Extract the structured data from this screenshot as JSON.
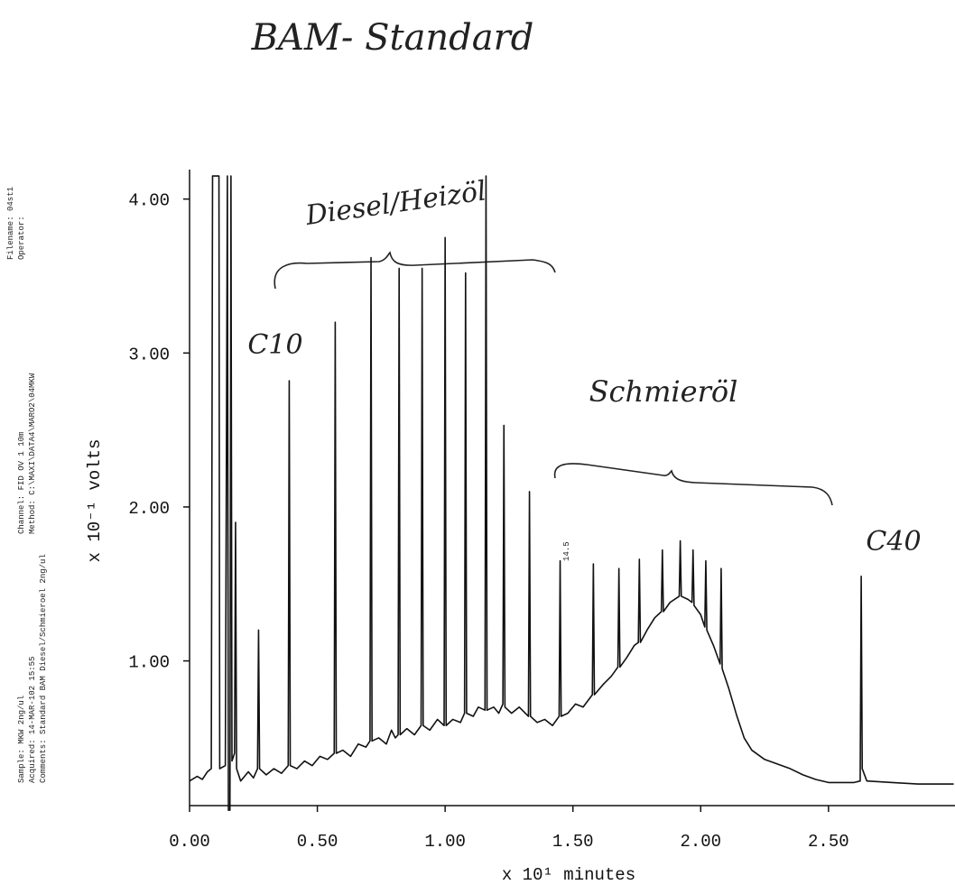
{
  "chart_data": {
    "type": "line",
    "title": "BAM- Standard",
    "annotations": [
      "Diesel/Heizöl",
      "C10",
      "Schmieröl",
      "C40",
      "14.5"
    ],
    "x_label": "x 10¹ minutes",
    "y_label": "x 10⁻¹ volts",
    "xlim": [
      0,
      2.995
    ],
    "ylim": [
      0.06,
      4.25
    ],
    "xticks": [
      {
        "value": 0,
        "label": "0.00"
      },
      {
        "value": 0.5,
        "label": "0.50"
      },
      {
        "value": 1,
        "label": "1.00"
      },
      {
        "value": 1.5,
        "label": "1.50"
      },
      {
        "value": 2,
        "label": "2.00"
      },
      {
        "value": 2.5,
        "label": "2.50"
      }
    ],
    "yticks": [
      {
        "value": 1,
        "label": "1.00"
      },
      {
        "value": 2,
        "label": "2.00"
      },
      {
        "value": 3,
        "label": "3.00"
      },
      {
        "value": 4,
        "label": "4.00"
      }
    ],
    "x": [
      0.0,
      0.03,
      0.05,
      0.07,
      0.085,
      0.09,
      0.115,
      0.118,
      0.14,
      0.148,
      0.152,
      0.158,
      0.162,
      0.166,
      0.176,
      0.18,
      0.184,
      0.2,
      0.23,
      0.25,
      0.266,
      0.27,
      0.274,
      0.3,
      0.33,
      0.36,
      0.386,
      0.39,
      0.394,
      0.42,
      0.45,
      0.48,
      0.51,
      0.54,
      0.566,
      0.57,
      0.574,
      0.6,
      0.63,
      0.66,
      0.69,
      0.706,
      0.71,
      0.714,
      0.74,
      0.77,
      0.79,
      0.805,
      0.816,
      0.82,
      0.824,
      0.85,
      0.88,
      0.906,
      0.91,
      0.914,
      0.94,
      0.97,
      0.996,
      1.0,
      1.004,
      1.03,
      1.06,
      1.076,
      1.08,
      1.084,
      1.11,
      1.13,
      1.156,
      1.16,
      1.164,
      1.19,
      1.21,
      1.226,
      1.23,
      1.234,
      1.26,
      1.29,
      1.326,
      1.33,
      1.334,
      1.36,
      1.39,
      1.42,
      1.446,
      1.45,
      1.454,
      1.48,
      1.51,
      1.54,
      1.576,
      1.58,
      1.584,
      1.62,
      1.65,
      1.676,
      1.68,
      1.684,
      1.71,
      1.74,
      1.756,
      1.76,
      1.764,
      1.79,
      1.82,
      1.846,
      1.85,
      1.854,
      1.88,
      1.916,
      1.92,
      1.924,
      1.95,
      1.966,
      1.97,
      1.974,
      2.0,
      2.016,
      2.02,
      2.024,
      2.05,
      2.076,
      2.08,
      2.084,
      2.11,
      2.14,
      2.17,
      2.2,
      2.25,
      2.3,
      2.35,
      2.4,
      2.45,
      2.5,
      2.55,
      2.6,
      2.624,
      2.628,
      2.632,
      2.65,
      2.75,
      2.85,
      2.99
    ],
    "series": [
      {
        "color": "#111111",
        "values": [
          0.22,
          0.25,
          0.23,
          0.28,
          0.3,
          4.15,
          4.15,
          0.3,
          0.32,
          4.15,
          0.03,
          0.03,
          4.15,
          0.35,
          0.4,
          1.9,
          0.3,
          0.22,
          0.28,
          0.24,
          0.3,
          1.2,
          0.3,
          0.26,
          0.3,
          0.27,
          0.32,
          2.82,
          0.32,
          0.3,
          0.35,
          0.32,
          0.38,
          0.36,
          0.4,
          3.2,
          0.4,
          0.42,
          0.38,
          0.46,
          0.44,
          0.48,
          3.62,
          0.48,
          0.5,
          0.46,
          0.55,
          0.5,
          0.52,
          3.55,
          0.52,
          0.56,
          0.52,
          0.58,
          3.55,
          0.58,
          0.55,
          0.62,
          0.58,
          3.75,
          0.58,
          0.62,
          0.6,
          0.66,
          3.52,
          0.66,
          0.64,
          0.7,
          0.68,
          4.15,
          0.68,
          0.7,
          0.66,
          0.72,
          2.53,
          0.7,
          0.66,
          0.7,
          0.64,
          2.1,
          0.64,
          0.6,
          0.62,
          0.58,
          0.64,
          1.65,
          0.64,
          0.66,
          0.72,
          0.7,
          0.78,
          1.63,
          0.78,
          0.85,
          0.9,
          0.96,
          1.6,
          0.96,
          1.02,
          1.1,
          1.12,
          1.66,
          1.12,
          1.2,
          1.28,
          1.32,
          1.72,
          1.32,
          1.38,
          1.42,
          1.78,
          1.42,
          1.4,
          1.38,
          1.72,
          1.36,
          1.3,
          1.22,
          1.65,
          1.2,
          1.1,
          0.98,
          1.6,
          0.95,
          0.82,
          0.65,
          0.5,
          0.42,
          0.36,
          0.33,
          0.3,
          0.26,
          0.23,
          0.21,
          0.21,
          0.21,
          0.22,
          1.55,
          0.3,
          0.22,
          0.21,
          0.2,
          0.2
        ]
      }
    ]
  },
  "metadata": {
    "lines": [
      "Filename: 04st1",
      "Operator:",
      "Channel: FID OV 1 10m",
      "Method: C:\\MAXI\\DATA4\\MARO2\\04MKW",
      "Sample: MKW 2ng/ul",
      "Acquired: 14-MAR-102 15:55",
      "Comments: Standard BAM Diesel/Schmieroel 2ng/ul"
    ]
  }
}
